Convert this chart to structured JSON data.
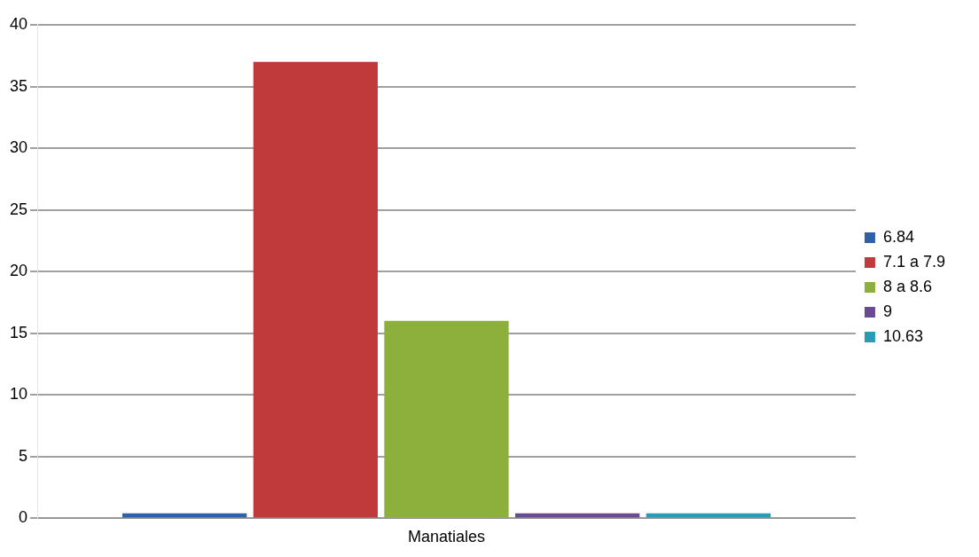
{
  "chart_data": {
    "type": "bar",
    "categories": [
      "Manatiales"
    ],
    "series": [
      {
        "name": "6.84",
        "color": "#2e62a8",
        "values": [
          0.4
        ]
      },
      {
        "name": "7.1 a 7.9",
        "color": "#c0393b",
        "values": [
          37
        ]
      },
      {
        "name": "8 a 8.6",
        "color": "#8db03c",
        "values": [
          16
        ]
      },
      {
        "name": "9",
        "color": "#6a4a93",
        "values": [
          0.4
        ]
      },
      {
        "name": "10.63",
        "color": "#2a9bb5",
        "values": [
          0.4
        ]
      }
    ],
    "ylim": [
      0,
      40
    ],
    "yticks": [
      0,
      5,
      10,
      15,
      20,
      25,
      30,
      35,
      40
    ],
    "grid": "y",
    "legend": "right"
  }
}
